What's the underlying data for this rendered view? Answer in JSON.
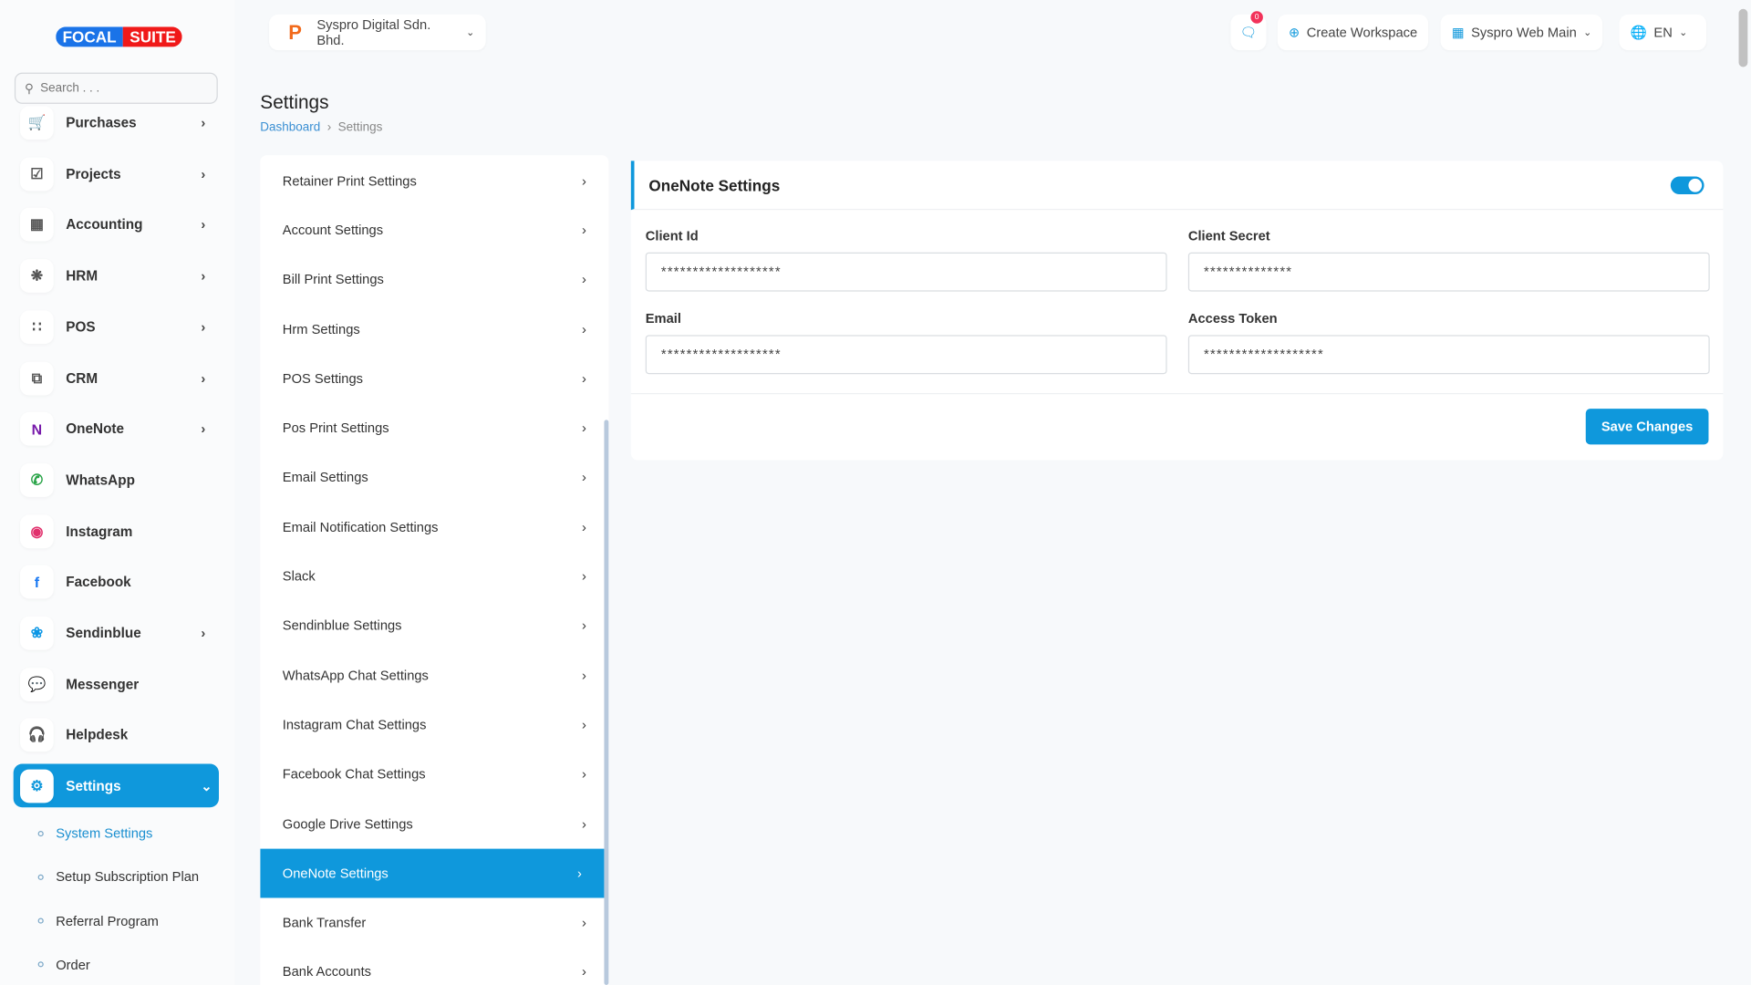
{
  "brand": {
    "logo_left": "FOCAL",
    "logo_right": "SUITE"
  },
  "search": {
    "placeholder": "Search . . ."
  },
  "company": {
    "name": "Syspro Digital Sdn. Bhd."
  },
  "topbar": {
    "notifications_count": "0",
    "create_workspace": "Create Workspace",
    "workspace": "Syspro Web Main",
    "language": "EN"
  },
  "sidebar": {
    "items": [
      {
        "label": "Purchases",
        "icon": "cart-icon",
        "chevron": true
      },
      {
        "label": "Projects",
        "icon": "checkbox-icon",
        "chevron": true
      },
      {
        "label": "Accounting",
        "icon": "grid-icon",
        "chevron": true
      },
      {
        "label": "HRM",
        "icon": "users-icon",
        "chevron": true
      },
      {
        "label": "POS",
        "icon": "dots-grid-icon",
        "chevron": true
      },
      {
        "label": "CRM",
        "icon": "layers-icon",
        "chevron": true
      },
      {
        "label": "OneNote",
        "icon": "onenote-icon",
        "chevron": true
      },
      {
        "label": "WhatsApp",
        "icon": "whatsapp-icon",
        "chevron": false
      },
      {
        "label": "Instagram",
        "icon": "instagram-icon",
        "chevron": false
      },
      {
        "label": "Facebook",
        "icon": "facebook-icon",
        "chevron": false
      },
      {
        "label": "Sendinblue",
        "icon": "sendinblue-icon",
        "chevron": true
      },
      {
        "label": "Messenger",
        "icon": "messenger-icon",
        "chevron": false
      },
      {
        "label": "Helpdesk",
        "icon": "headset-icon",
        "chevron": false
      }
    ],
    "active": {
      "label": "Settings",
      "icon": "gear-icon"
    },
    "sub_items": [
      "System Settings",
      "Setup Subscription Plan",
      "Referral Program",
      "Order"
    ]
  },
  "page": {
    "title": "Settings",
    "breadcrumb": [
      "Dashboard",
      "Settings"
    ]
  },
  "settings_menu": [
    "Retainer Print Settings",
    "Account Settings",
    "Bill Print Settings",
    "Hrm Settings",
    "POS Settings",
    "Pos Print Settings",
    "Email Settings",
    "Email Notification Settings",
    "Slack",
    "Sendinblue Settings",
    "WhatsApp Chat Settings",
    "Instagram Chat Settings",
    "Facebook Chat Settings",
    "Google Drive Settings",
    "OneNote Settings",
    "Bank Transfer",
    "Bank Accounts"
  ],
  "settings_menu_active": "OneNote Settings",
  "card": {
    "title": "OneNote Settings",
    "enabled": true,
    "fields": [
      {
        "label": "Client Id",
        "value": "*******************"
      },
      {
        "label": "Client Secret",
        "value": "**************"
      },
      {
        "label": "Email",
        "value": "*******************"
      },
      {
        "label": "Access Token",
        "value": "*******************"
      }
    ],
    "save_label": "Save Changes"
  },
  "colors": {
    "accent": "#0f98dc",
    "badge": "#f2325a"
  }
}
